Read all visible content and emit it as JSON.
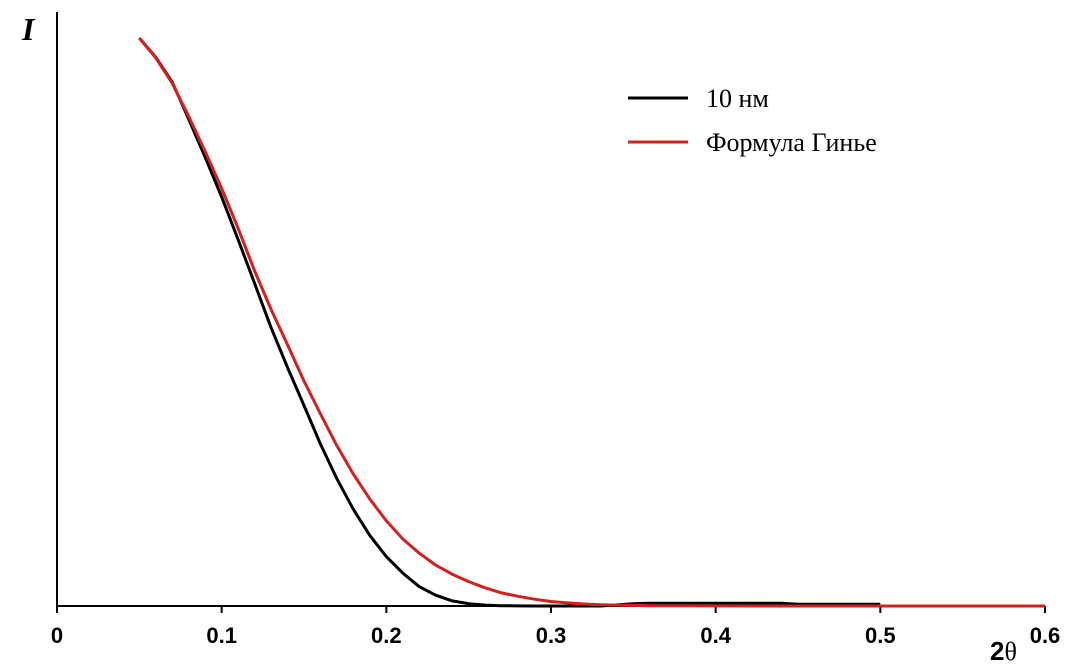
{
  "chart_data": {
    "type": "line",
    "title": "",
    "xlabel": "2θ",
    "xlabel_parts": [
      "2",
      "θ"
    ],
    "ylabel": "I",
    "xlim": [
      0,
      0.6
    ],
    "xticks": [
      "0",
      "0.1",
      "0.2",
      "0.3",
      "0.4",
      "0.5",
      "0.6"
    ],
    "xtick_values": [
      0,
      0.1,
      0.2,
      0.3,
      0.4,
      0.5,
      0.6
    ],
    "ylim": [
      0,
      1
    ],
    "y_ticks_shown": false,
    "grid": false,
    "legend_position": "top-right",
    "series": [
      {
        "name": "10 нм",
        "color": "#000000",
        "x": [
          0.05,
          0.06,
          0.07,
          0.08,
          0.09,
          0.1,
          0.11,
          0.12,
          0.13,
          0.14,
          0.15,
          0.16,
          0.17,
          0.18,
          0.19,
          0.2,
          0.21,
          0.22,
          0.23,
          0.24,
          0.25,
          0.26,
          0.27,
          0.28,
          0.29,
          0.3,
          0.31,
          0.32,
          0.33,
          0.34,
          0.35,
          0.36,
          0.38,
          0.4,
          0.42,
          0.44,
          0.45,
          0.47,
          0.5
        ],
        "y": [
          1.0,
          0.966,
          0.922,
          0.857,
          0.79,
          0.72,
          0.645,
          0.568,
          0.49,
          0.42,
          0.353,
          0.285,
          0.224,
          0.17,
          0.124,
          0.087,
          0.058,
          0.034,
          0.019,
          0.009,
          0.004,
          0.0015,
          0.0005,
          0.0002,
          0.0,
          0.0,
          0.0,
          0.0,
          0.0,
          0.002,
          0.004,
          0.005,
          0.005,
          0.005,
          0.005,
          0.005,
          0.003,
          0.003,
          0.003
        ]
      },
      {
        "name": "Формула Гинье",
        "color": "#d42020",
        "x": [
          0.05,
          0.06,
          0.07,
          0.08,
          0.09,
          0.1,
          0.11,
          0.12,
          0.13,
          0.14,
          0.15,
          0.16,
          0.17,
          0.18,
          0.19,
          0.2,
          0.21,
          0.22,
          0.23,
          0.24,
          0.25,
          0.26,
          0.27,
          0.28,
          0.29,
          0.3,
          0.31,
          0.32,
          0.33,
          0.34,
          0.35,
          0.36,
          0.38,
          0.4,
          0.45,
          0.5,
          0.55,
          0.6
        ],
        "y": [
          1.0,
          0.965,
          0.92,
          0.862,
          0.8,
          0.735,
          0.665,
          0.59,
          0.522,
          0.46,
          0.396,
          0.338,
          0.282,
          0.232,
          0.188,
          0.15,
          0.118,
          0.093,
          0.072,
          0.056,
          0.043,
          0.032,
          0.023,
          0.017,
          0.012,
          0.008,
          0.0055,
          0.0035,
          0.0022,
          0.0015,
          0.001,
          0.0006,
          0.0003,
          0.0001,
          0.0,
          0.0,
          0.0,
          0.0
        ]
      }
    ]
  }
}
